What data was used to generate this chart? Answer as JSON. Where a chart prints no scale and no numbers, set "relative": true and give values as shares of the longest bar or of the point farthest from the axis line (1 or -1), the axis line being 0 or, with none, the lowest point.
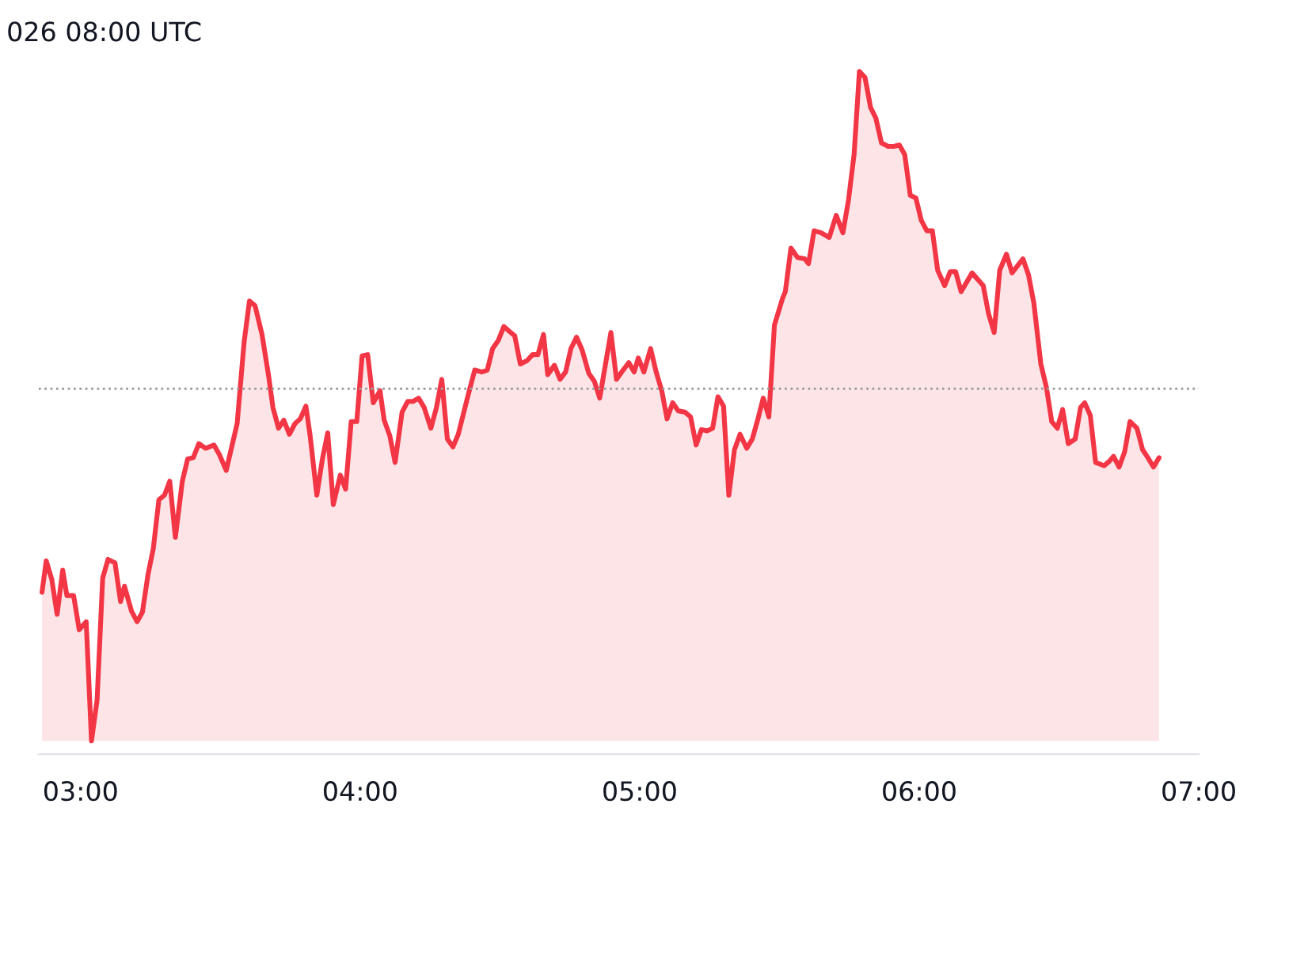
{
  "chart_data": {
    "type": "area",
    "title": "026 08:00 UTC",
    "relative": true,
    "xlim": [
      2.85,
      7.0
    ],
    "xticks": [
      {
        "value": 3,
        "label": "03:00"
      },
      {
        "value": 4,
        "label": "04:00"
      },
      {
        "value": 5,
        "label": "05:00"
      },
      {
        "value": 6,
        "label": "06:00"
      },
      {
        "value": 7,
        "label": "07:00"
      }
    ],
    "ref_lines": [
      {
        "axis": "y",
        "value": 0.526,
        "label": null,
        "color": "#9e9e9e",
        "line_style": "dotted"
      }
    ],
    "legend": false,
    "series": [
      {
        "color": "#f23645",
        "x": [
          2.862,
          2.877,
          2.897,
          2.916,
          2.936,
          2.951,
          2.975,
          2.995,
          3.02,
          3.039,
          3.059,
          3.079,
          3.098,
          3.123,
          3.143,
          3.157,
          3.182,
          3.202,
          3.221,
          3.241,
          3.26,
          3.28,
          3.3,
          3.319,
          3.339,
          3.364,
          3.383,
          3.403,
          3.423,
          3.447,
          3.477,
          3.496,
          3.521,
          3.56,
          3.585,
          3.604,
          3.624,
          3.649,
          3.673,
          3.688,
          3.708,
          3.727,
          3.747,
          3.767,
          3.786,
          3.806,
          3.821,
          3.845,
          3.865,
          3.884,
          3.904,
          3.929,
          3.948,
          3.968,
          3.988,
          4.007,
          4.027,
          4.047,
          4.071,
          4.086,
          4.106,
          4.125,
          4.15,
          4.17,
          4.189,
          4.209,
          4.229,
          4.253,
          4.273,
          4.292,
          4.312,
          4.332,
          4.351,
          4.386,
          4.41,
          4.435,
          4.455,
          4.474,
          4.494,
          4.514,
          4.533,
          4.553,
          4.573,
          4.597,
          4.617,
          4.636,
          4.656,
          4.671,
          4.695,
          4.715,
          4.735,
          4.754,
          4.774,
          4.794,
          4.818,
          4.838,
          4.857,
          4.877,
          4.897,
          4.917,
          4.941,
          4.961,
          4.98,
          4.995,
          5.015,
          5.039,
          5.059,
          5.079,
          5.098,
          5.118,
          5.138,
          5.162,
          5.182,
          5.202,
          5.221,
          5.241,
          5.261,
          5.28,
          5.3,
          5.319,
          5.339,
          5.359,
          5.383,
          5.403,
          5.423,
          5.442,
          5.462,
          5.482,
          5.511,
          5.521,
          5.541,
          5.565,
          5.59,
          5.604,
          5.624,
          5.649,
          5.678,
          5.703,
          5.727,
          5.747,
          5.767,
          5.786,
          5.806,
          5.826,
          5.845,
          5.865,
          5.889,
          5.909,
          5.929,
          5.948,
          5.968,
          5.988,
          6.007,
          6.027,
          6.047,
          6.066,
          6.091,
          6.111,
          6.13,
          6.15,
          6.189,
          6.229,
          6.248,
          6.268,
          6.288,
          6.312,
          6.332,
          6.371,
          6.391,
          6.41,
          6.435,
          6.455,
          6.474,
          6.494,
          6.513,
          6.533,
          6.558,
          6.577,
          6.592,
          6.612,
          6.631,
          6.661,
          6.681,
          6.695,
          6.715,
          6.735,
          6.754,
          6.779,
          6.799,
          6.818,
          6.838,
          6.858
        ],
        "values": [
          0.222,
          0.269,
          0.241,
          0.189,
          0.255,
          0.217,
          0.217,
          0.166,
          0.178,
          0,
          0.061,
          0.243,
          0.271,
          0.266,
          0.208,
          0.231,
          0.194,
          0.178,
          0.192,
          0.248,
          0.287,
          0.36,
          0.367,
          0.388,
          0.304,
          0.388,
          0.421,
          0.423,
          0.444,
          0.437,
          0.442,
          0.428,
          0.404,
          0.474,
          0.596,
          0.657,
          0.65,
          0.607,
          0.544,
          0.498,
          0.467,
          0.479,
          0.458,
          0.474,
          0.481,
          0.5,
          0.456,
          0.367,
          0.421,
          0.46,
          0.353,
          0.397,
          0.376,
          0.477,
          0.477,
          0.575,
          0.577,
          0.505,
          0.523,
          0.479,
          0.456,
          0.416,
          0.491,
          0.507,
          0.507,
          0.512,
          0.498,
          0.467,
          0.498,
          0.54,
          0.451,
          0.439,
          0.458,
          0.516,
          0.554,
          0.551,
          0.554,
          0.586,
          0.598,
          0.619,
          0.612,
          0.605,
          0.563,
          0.568,
          0.577,
          0.577,
          0.607,
          0.547,
          0.561,
          0.54,
          0.551,
          0.586,
          0.603,
          0.584,
          0.549,
          0.537,
          0.512,
          0.561,
          0.61,
          0.54,
          0.554,
          0.565,
          0.551,
          0.572,
          0.551,
          0.586,
          0.551,
          0.523,
          0.481,
          0.505,
          0.493,
          0.491,
          0.484,
          0.442,
          0.465,
          0.463,
          0.467,
          0.514,
          0.5,
          0.367,
          0.435,
          0.458,
          0.437,
          0.451,
          0.481,
          0.512,
          0.484,
          0.621,
          0.661,
          0.671,
          0.736,
          0.722,
          0.72,
          0.713,
          0.762,
          0.759,
          0.752,
          0.785,
          0.759,
          0.808,
          0.876,
          1,
          0.991,
          0.946,
          0.93,
          0.893,
          0.888,
          0.888,
          0.89,
          0.876,
          0.815,
          0.811,
          0.778,
          0.762,
          0.762,
          0.703,
          0.68,
          0.701,
          0.701,
          0.671,
          0.699,
          0.68,
          0.638,
          0.61,
          0.703,
          0.727,
          0.699,
          0.72,
          0.696,
          0.654,
          0.563,
          0.528,
          0.477,
          0.467,
          0.495,
          0.444,
          0.451,
          0.498,
          0.505,
          0.486,
          0.416,
          0.411,
          0.418,
          0.425,
          0.409,
          0.432,
          0.477,
          0.467,
          0.435,
          0.423,
          0.409,
          0.423
        ]
      }
    ]
  }
}
